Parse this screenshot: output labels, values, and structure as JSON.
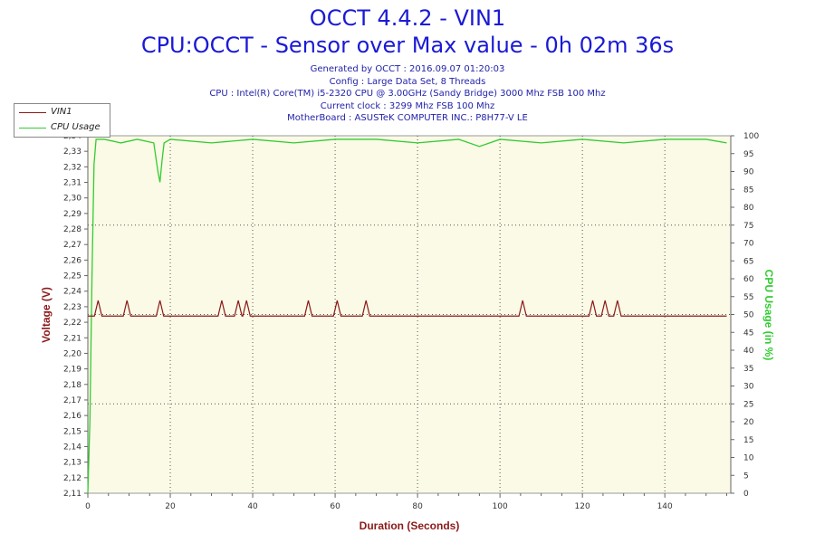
{
  "title": "OCCT 4.4.2 - VIN1",
  "subtitle": "CPU:OCCT - Sensor over Max value - 0h 02m 36s",
  "info_lines": [
    "Generated by OCCT : 2016.09.07 01:20:03",
    "Config : Large Data Set, 8 Threads",
    "CPU : Intel(R) Core(TM) i5-2320 CPU @ 3.00GHz (Sandy Bridge) 3000 Mhz FSB 100 Mhz",
    "Current clock : 3299 Mhz FSB 100 Mhz",
    "MotherBoard : ASUSTeK COMPUTER INC.: P8H77-V LE"
  ],
  "colors": {
    "vin1": "#8b1a1a",
    "cpu": "#33cc33",
    "plot_bg": "#fafae6",
    "grid": "#555555",
    "left_axis_label": "#8b1a1a",
    "right_axis_label": "#33cc33",
    "x_axis_label": "#8b1a1a",
    "title": "#1a1ad6"
  },
  "chart_data": {
    "type": "line",
    "xlabel": "Duration (Seconds)",
    "ylabel_left": "Voltage (V)",
    "ylabel_right": "CPU Usage (in %)",
    "xlim": [
      0,
      156
    ],
    "x_ticks": [
      0,
      20,
      40,
      60,
      80,
      100,
      120,
      140
    ],
    "ylim_left": [
      2.11,
      2.34
    ],
    "ylim_right": [
      0,
      100
    ],
    "y_ticks_left": [
      "2,11",
      "2,12",
      "2,13",
      "2,14",
      "2,15",
      "2,16",
      "2,17",
      "2,18",
      "2,19",
      "2,20",
      "2,21",
      "2,22",
      "2,23",
      "2,24",
      "2,25",
      "2,26",
      "2,27",
      "2,28",
      "2,29",
      "2,30",
      "2,31",
      "2,32",
      "2,33",
      "2,34"
    ],
    "y_ticks_right": [
      0,
      5,
      10,
      15,
      20,
      25,
      30,
      35,
      40,
      45,
      50,
      55,
      60,
      65,
      70,
      75,
      80,
      85,
      90,
      95,
      100
    ],
    "grid": true,
    "legend_position": "top-left",
    "series": [
      {
        "name": "VIN1",
        "axis": "left",
        "baseline": 2.224,
        "spike_value": 2.234,
        "spikes_x": [
          2.5,
          9.5,
          17.5,
          32.5,
          36.5,
          38.5,
          53.5,
          60.5,
          67.5,
          105.5,
          122.5,
          125.5,
          128.5
        ],
        "x_end": 155
      },
      {
        "name": "CPU Usage",
        "axis": "right",
        "points": [
          [
            0,
            0
          ],
          [
            0.5,
            20
          ],
          [
            1,
            60
          ],
          [
            1.5,
            92
          ],
          [
            2,
            99
          ],
          [
            4,
            99
          ],
          [
            8,
            98
          ],
          [
            12,
            99
          ],
          [
            16,
            98
          ],
          [
            17,
            90
          ],
          [
            17.5,
            87
          ],
          [
            18,
            93
          ],
          [
            18.5,
            98
          ],
          [
            20,
            99
          ],
          [
            30,
            98
          ],
          [
            40,
            99
          ],
          [
            50,
            98
          ],
          [
            60,
            99
          ],
          [
            70,
            99
          ],
          [
            80,
            98
          ],
          [
            90,
            99
          ],
          [
            95,
            97
          ],
          [
            100,
            99
          ],
          [
            110,
            98
          ],
          [
            120,
            99
          ],
          [
            130,
            98
          ],
          [
            140,
            99
          ],
          [
            150,
            99
          ],
          [
            155,
            98
          ]
        ]
      }
    ]
  }
}
